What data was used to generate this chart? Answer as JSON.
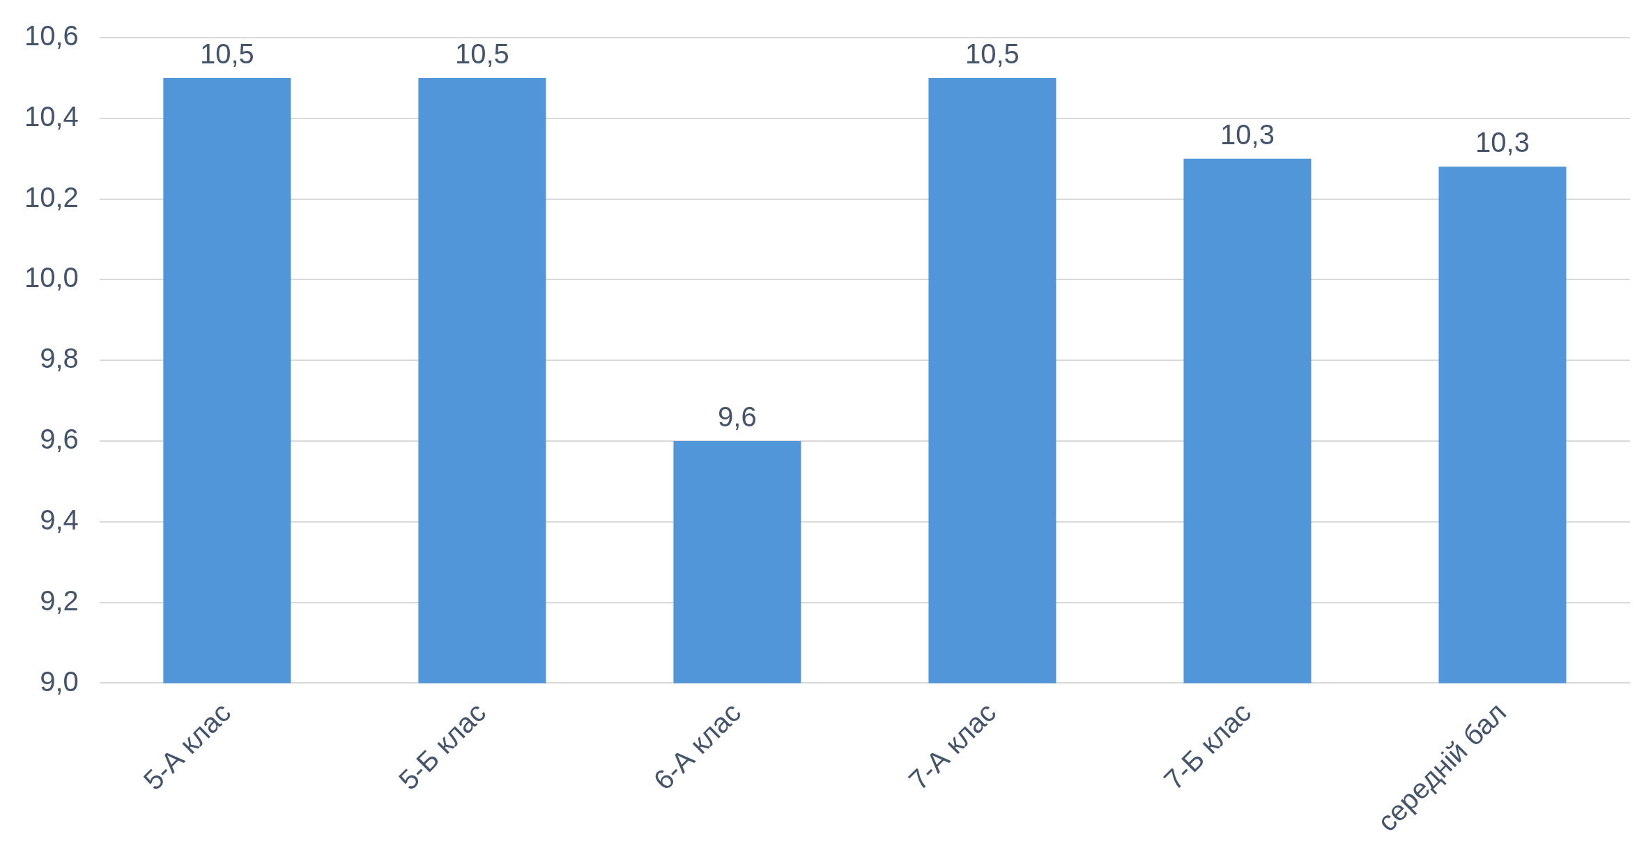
{
  "chart_data": {
    "type": "bar",
    "categories": [
      "5-А клас",
      "5-Б клас",
      "6-А клас",
      "7-А клас",
      "7-Б клас",
      "середній бал"
    ],
    "values": [
      10.5,
      10.5,
      9.6,
      10.5,
      10.3,
      10.28
    ],
    "value_labels": [
      "10,5",
      "10,5",
      "9,6",
      "10,5",
      "10,3",
      "10,3"
    ],
    "color": "#5196d8",
    "ylim": [
      9,
      10.6
    ],
    "yticks": [
      {
        "value": 9,
        "label": "9,0"
      },
      {
        "value": 9.2,
        "label": "9,2"
      },
      {
        "value": 9.4,
        "label": "9,4"
      },
      {
        "value": 9.6,
        "label": "9,6"
      },
      {
        "value": 9.8,
        "label": "9,8"
      },
      {
        "value": 10,
        "label": "10,0"
      },
      {
        "value": 10.2,
        "label": "10,2"
      },
      {
        "value": 10.4,
        "label": "10,4"
      },
      {
        "value": 10.6,
        "label": "10,6"
      }
    ],
    "grid": "y"
  }
}
